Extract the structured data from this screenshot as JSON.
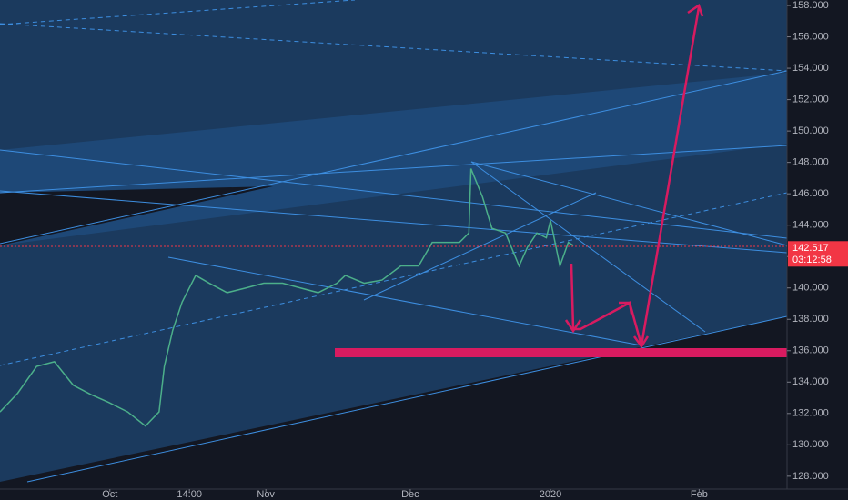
{
  "chart_data": {
    "type": "line",
    "series": [
      {
        "color": "#4caf8a",
        "x": [
          0,
          1.7,
          3.5,
          5.2,
          7,
          8.7,
          10.4,
          12.2,
          13.9,
          15.2,
          15.7,
          16.5,
          17.4,
          18.7,
          20,
          21.7,
          23.5,
          25.2,
          27,
          28.7,
          30.4,
          32.2,
          33,
          34.8,
          36.5,
          38.3,
          40,
          41.3,
          42.6,
          43.9,
          44.8,
          45,
          46.1,
          47,
          48.3,
          49.6,
          50.4,
          51.3,
          52.2,
          52.6,
          53.5,
          54.3,
          54.8
        ],
        "values": [
          132.1,
          133.3,
          135.0,
          135.3,
          133.8,
          133.2,
          132.7,
          132.1,
          131.2,
          132.1,
          135.0,
          137.3,
          139.1,
          140.8,
          140.3,
          139.7,
          140.0,
          140.3,
          140.3,
          140.0,
          139.7,
          140.3,
          140.8,
          140.3,
          140.5,
          141.4,
          141.4,
          142.9,
          142.9,
          142.9,
          143.5,
          147.6,
          145.8,
          143.8,
          143.5,
          141.4,
          142.6,
          143.5,
          143.2,
          144.3,
          141.4,
          142.9,
          142.7
        ]
      }
    ],
    "xlim": [
      0,
      75.2
    ],
    "xticks": [
      {
        "value": 10.5,
        "label": "Oct"
      },
      {
        "value": 18.1,
        "label": "14:00"
      },
      {
        "value": 25.4,
        "label": "Nov"
      },
      {
        "value": 39.2,
        "label": "Dec"
      },
      {
        "value": 52.6,
        "label": "2020"
      },
      {
        "value": 66.8,
        "label": "Feb"
      }
    ],
    "ylim": [
      127.18,
      158.35
    ],
    "yticks": [
      {
        "value": 128,
        "label": "128.000"
      },
      {
        "value": 130,
        "label": "130.000"
      },
      {
        "value": 132,
        "label": "132.000"
      },
      {
        "value": 134,
        "label": "134.000"
      },
      {
        "value": 136,
        "label": "136.000"
      },
      {
        "value": 138,
        "label": "138.000"
      },
      {
        "value": 140,
        "label": "140.000"
      },
      {
        "value": 142,
        "label": "142.000"
      },
      {
        "value": 144,
        "label": "144.000"
      },
      {
        "value": 146,
        "label": "146.000"
      },
      {
        "value": 148,
        "label": "148.000"
      },
      {
        "value": 150,
        "label": "150.000"
      },
      {
        "value": 152,
        "label": "152.000"
      },
      {
        "value": 154,
        "label": "154.000"
      },
      {
        "value": 156,
        "label": "156.000"
      },
      {
        "value": 158,
        "label": "158.000"
      }
    ],
    "last_price": {
      "value": 142.517,
      "label": "142.517"
    },
    "countdown": "03:12:58"
  }
}
